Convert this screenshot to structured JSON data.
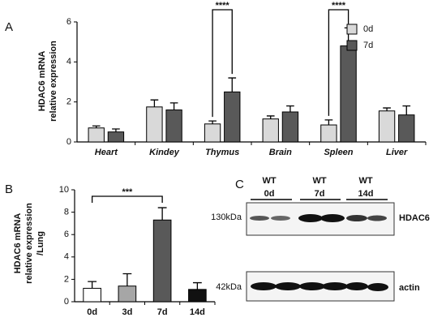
{
  "chart_data": [
    {
      "type": "bar",
      "panel_label": "A",
      "ylabel": [
        "HDAC6 mRNA",
        "relative expression"
      ],
      "categories": [
        "Heart",
        "Kindey",
        "Thymus",
        "Brain",
        "Spleen",
        "Liver"
      ],
      "series": [
        {
          "name": "0d",
          "color": "#d9d9d9",
          "values": [
            0.7,
            1.75,
            0.9,
            1.15,
            0.85,
            1.55
          ],
          "errors": [
            0.1,
            0.35,
            0.15,
            0.15,
            0.25,
            0.15
          ]
        },
        {
          "name": "7d",
          "color": "#595959",
          "values": [
            0.5,
            1.6,
            2.5,
            1.5,
            4.8,
            1.35
          ],
          "errors": [
            0.15,
            0.35,
            0.7,
            0.3,
            0.9,
            0.45
          ]
        }
      ],
      "ylim": [
        0,
        6
      ],
      "yticks": [
        0,
        2,
        4,
        6
      ],
      "legend": "upper right",
      "annotations": [
        {
          "text": "****",
          "category": "Thymus"
        },
        {
          "text": "****",
          "category": "Spleen"
        }
      ]
    },
    {
      "type": "bar",
      "panel_label": "B",
      "ylabel": [
        "HDAC6 mRNA",
        "relative expression",
        "/Lung"
      ],
      "categories": [
        "0d",
        "3d",
        "7d",
        "14d"
      ],
      "values": [
        1.2,
        1.4,
        7.3,
        1.1
      ],
      "errors": [
        0.6,
        1.1,
        1.1,
        0.6
      ],
      "colors": [
        "#ffffff",
        "#a6a6a6",
        "#595959",
        "#111111"
      ],
      "ylim": [
        0,
        10
      ],
      "yticks": [
        0,
        2,
        4,
        6,
        8,
        10
      ],
      "annotations": [
        {
          "text": "***",
          "from": "0d",
          "to": "7d"
        }
      ]
    }
  ],
  "blot": {
    "panel_label": "C",
    "lanes": [
      {
        "line1": "WT",
        "line2": "0d"
      },
      {
        "line1": "WT",
        "line2": "7d"
      },
      {
        "line1": "WT",
        "line2": "14d"
      }
    ],
    "bands": [
      {
        "size": "130kDa",
        "label": "HDAC6"
      },
      {
        "size": "42kDa",
        "label": "actin"
      }
    ]
  }
}
